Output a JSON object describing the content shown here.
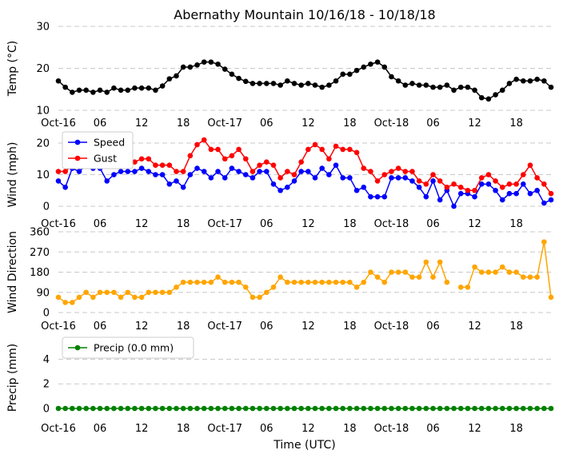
{
  "chart_data": {
    "title": "Abernathy Mountain 10/16/18 - 10/18/18",
    "xlabel": "Time (UTC)",
    "x_tick_labels": [
      "Oct-16",
      "06",
      "12",
      "18",
      "Oct-17",
      "06",
      "12",
      "18",
      "Oct-18",
      "06",
      "12",
      "18"
    ],
    "x_hours": [
      0,
      1,
      2,
      3,
      4,
      5,
      6,
      7,
      8,
      9,
      10,
      11,
      12,
      13,
      14,
      15,
      16,
      17,
      18,
      19,
      20,
      21,
      22,
      23,
      24,
      25,
      26,
      27,
      28,
      29,
      30,
      31,
      32,
      33,
      34,
      35,
      36,
      37,
      38,
      39,
      40,
      41,
      42,
      43,
      44,
      45,
      46,
      47,
      48,
      49,
      50,
      51,
      52,
      53,
      54,
      55,
      56,
      57,
      58,
      59,
      60,
      61,
      62,
      63,
      64,
      65,
      66,
      67,
      68,
      69,
      70,
      71
    ],
    "panels": [
      {
        "type": "line",
        "ylabel": "Temp (°C)",
        "ylim": [
          10,
          30
        ],
        "yticks": [
          10,
          20,
          30
        ],
        "grid": true,
        "legend": null,
        "series": [
          {
            "color": "#000000",
            "values": [
              17,
              15.5,
              14.3,
              14.8,
              14.8,
              14.3,
              14.8,
              14.3,
              15.3,
              14.8,
              14.8,
              15.3,
              15.3,
              15.3,
              14.8,
              15.8,
              17.5,
              18.2,
              20.3,
              20.3,
              20.8,
              21.5,
              21.5,
              21,
              19.8,
              18.6,
              17.6,
              16.9,
              16.4,
              16.4,
              16.4,
              16.4,
              16,
              17,
              16.4,
              16,
              16.4,
              16,
              15.5,
              16,
              17,
              18.6,
              18.6,
              19.5,
              20.3,
              21,
              21.5,
              20.3,
              18,
              17,
              16,
              16.4,
              16,
              16,
              15.5,
              15.5,
              16,
              14.8,
              15.5,
              15.5,
              14.8,
              13,
              12.7,
              13.7,
              14.8,
              16.4,
              17.4,
              17,
              17,
              17.4,
              17,
              15.5
            ]
          }
        ]
      },
      {
        "type": "line",
        "ylabel": "Wind (mph)",
        "ylim": [
          0,
          20
        ],
        "yticks": [
          0,
          10,
          20
        ],
        "grid": true,
        "legend": "top-left",
        "series": [
          {
            "name": "Speed",
            "color": "#0000ff",
            "values": [
              8,
              6,
              12,
              11,
              13,
              12,
              12,
              8,
              10,
              11,
              11,
              11,
              12,
              11,
              10,
              10,
              7,
              8,
              6,
              10,
              12,
              11,
              9,
              11,
              9,
              12,
              11,
              10,
              9,
              11,
              11,
              7,
              5,
              6,
              8,
              11,
              11,
              9,
              12,
              10,
              13,
              9,
              9,
              5,
              6,
              3,
              3,
              3,
              9,
              9,
              9,
              8,
              6,
              3,
              8,
              2,
              5,
              0,
              4,
              4,
              3,
              7,
              7,
              5,
              2,
              4,
              4,
              7,
              4,
              5,
              1,
              2
            ]
          },
          {
            "name": "Gust",
            "color": "#ff0000",
            "values": [
              11,
              11,
              13,
              15,
              16,
              17,
              16,
              16,
              13,
              13,
              13,
              14,
              15,
              15,
              13,
              13,
              13,
              11,
              11,
              16,
              19.5,
              21,
              18,
              18,
              15,
              16,
              18,
              15,
              11,
              13,
              14,
              13,
              9,
              11,
              10,
              14,
              18,
              19.5,
              18,
              15,
              19,
              18,
              18,
              17,
              12,
              11,
              8,
              10,
              11,
              12,
              11,
              11,
              8,
              7,
              10,
              8,
              6,
              7,
              6,
              5,
              5,
              9,
              10,
              8,
              6,
              7,
              7,
              10,
              13,
              9,
              7,
              4
            ]
          }
        ]
      },
      {
        "type": "line",
        "ylabel": "Wind Direction",
        "ylim": [
          0,
          360
        ],
        "yticks": [
          0,
          90,
          180,
          270,
          360
        ],
        "grid": true,
        "legend": null,
        "series": [
          {
            "color": "#ffa500",
            "values": [
              68,
              45,
              45,
              68,
              90,
              68,
              90,
              90,
              90,
              68,
              90,
              68,
              68,
              90,
              90,
              90,
              90,
              113,
              135,
              135,
              135,
              135,
              135,
              158,
              135,
              135,
              135,
              113,
              68,
              68,
              90,
              113,
              158,
              135,
              135,
              135,
              135,
              135,
              135,
              135,
              135,
              135,
              135,
              113,
              135,
              180,
              158,
              135,
              180,
              180,
              180,
              158,
              158,
              225,
              158,
              225,
              135,
              null,
              113,
              113,
              203,
              180,
              180,
              180,
              203,
              180,
              180,
              158,
              158,
              158,
              315,
              68
            ]
          }
        ]
      },
      {
        "type": "line",
        "ylabel": "Precip (mm)",
        "ylim": [
          0,
          5
        ],
        "yticks": [
          0,
          2,
          4
        ],
        "grid": true,
        "legend": "top-left",
        "series": [
          {
            "name": "Precip (0.0 mm)",
            "color": "#008000",
            "values": [
              0,
              0,
              0,
              0,
              0,
              0,
              0,
              0,
              0,
              0,
              0,
              0,
              0,
              0,
              0,
              0,
              0,
              0,
              0,
              0,
              0,
              0,
              0,
              0,
              0,
              0,
              0,
              0,
              0,
              0,
              0,
              0,
              0,
              0,
              0,
              0,
              0,
              0,
              0,
              0,
              0,
              0,
              0,
              0,
              0,
              0,
              0,
              0,
              0,
              0,
              0,
              0,
              0,
              0,
              0,
              0,
              0,
              0,
              0,
              0,
              0,
              0,
              0,
              0,
              0,
              0,
              0,
              0,
              0,
              0,
              0,
              0
            ]
          }
        ]
      }
    ]
  }
}
